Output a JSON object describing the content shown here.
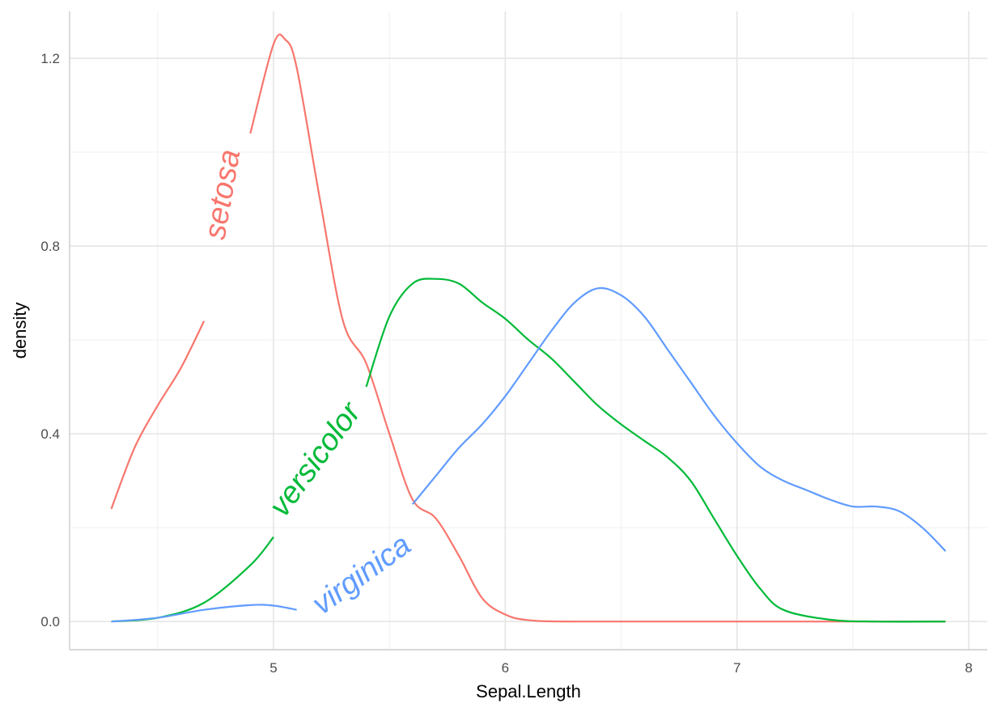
{
  "chart_data": {
    "type": "line",
    "xlabel": "Sepal.Length",
    "ylabel": "density",
    "xlim": [
      4.12,
      8.08
    ],
    "ylim": [
      -0.06,
      1.3
    ],
    "x_ticks": [
      5,
      6,
      7,
      8
    ],
    "y_ticks": [
      0.0,
      0.4,
      0.8,
      1.2
    ],
    "x_tick_labels": [
      "5",
      "6",
      "7",
      "8"
    ],
    "y_tick_labels": [
      "0.0",
      "0.4",
      "0.8",
      "1.2"
    ],
    "grid": true,
    "series": [
      {
        "name": "setosa",
        "color": "#F8766D",
        "points": [
          [
            4.3,
            0.24
          ],
          [
            4.4,
            0.37
          ],
          [
            4.5,
            0.46
          ],
          [
            4.6,
            0.54
          ],
          [
            4.7,
            0.64
          ],
          [
            4.8,
            0.8
          ],
          [
            4.9,
            1.04
          ],
          [
            5.0,
            1.23
          ],
          [
            5.05,
            1.24
          ],
          [
            5.1,
            1.18
          ],
          [
            5.2,
            0.9
          ],
          [
            5.3,
            0.64
          ],
          [
            5.4,
            0.55
          ],
          [
            5.5,
            0.4
          ],
          [
            5.6,
            0.26
          ],
          [
            5.7,
            0.22
          ],
          [
            5.8,
            0.14
          ],
          [
            5.9,
            0.05
          ],
          [
            6.0,
            0.015
          ],
          [
            6.1,
            0.003
          ],
          [
            6.3,
            0.0
          ],
          [
            7.0,
            0.0
          ],
          [
            7.9,
            0.0
          ]
        ],
        "label": {
          "text": "setosa",
          "x": 4.78,
          "y": 0.91,
          "angle": -80,
          "gap_from": 4.78,
          "gap_to": 4.89
        }
      },
      {
        "name": "versicolor",
        "color": "#00BA38",
        "points": [
          [
            4.3,
            0.0
          ],
          [
            4.5,
            0.008
          ],
          [
            4.7,
            0.04
          ],
          [
            4.9,
            0.12
          ],
          [
            5.0,
            0.18
          ],
          [
            5.1,
            0.25
          ],
          [
            5.2,
            0.34
          ],
          [
            5.3,
            0.42
          ],
          [
            5.4,
            0.5
          ],
          [
            5.5,
            0.65
          ],
          [
            5.6,
            0.72
          ],
          [
            5.7,
            0.73
          ],
          [
            5.8,
            0.72
          ],
          [
            5.9,
            0.68
          ],
          [
            6.0,
            0.645
          ],
          [
            6.1,
            0.6
          ],
          [
            6.2,
            0.56
          ],
          [
            6.3,
            0.51
          ],
          [
            6.4,
            0.46
          ],
          [
            6.5,
            0.42
          ],
          [
            6.6,
            0.385
          ],
          [
            6.7,
            0.35
          ],
          [
            6.8,
            0.3
          ],
          [
            6.9,
            0.22
          ],
          [
            7.0,
            0.14
          ],
          [
            7.1,
            0.07
          ],
          [
            7.2,
            0.025
          ],
          [
            7.4,
            0.004
          ],
          [
            7.6,
            0.0
          ],
          [
            7.9,
            0.0
          ]
        ],
        "label": {
          "text": "versicolor",
          "x": 5.18,
          "y": 0.345,
          "angle": -54,
          "gap_from": 5.0,
          "gap_to": 5.39
        }
      },
      {
        "name": "virginica",
        "color": "#619CFF",
        "points": [
          [
            4.3,
            0.0
          ],
          [
            4.5,
            0.008
          ],
          [
            4.7,
            0.025
          ],
          [
            4.9,
            0.035
          ],
          [
            5.0,
            0.034
          ],
          [
            5.1,
            0.025
          ],
          [
            5.2,
            0.04
          ],
          [
            5.3,
            0.07
          ],
          [
            5.4,
            0.12
          ],
          [
            5.5,
            0.18
          ],
          [
            5.6,
            0.25
          ],
          [
            5.7,
            0.31
          ],
          [
            5.8,
            0.37
          ],
          [
            5.9,
            0.42
          ],
          [
            6.0,
            0.48
          ],
          [
            6.1,
            0.55
          ],
          [
            6.2,
            0.62
          ],
          [
            6.3,
            0.68
          ],
          [
            6.4,
            0.71
          ],
          [
            6.5,
            0.695
          ],
          [
            6.6,
            0.65
          ],
          [
            6.7,
            0.58
          ],
          [
            6.8,
            0.51
          ],
          [
            6.9,
            0.44
          ],
          [
            7.0,
            0.38
          ],
          [
            7.1,
            0.33
          ],
          [
            7.2,
            0.3
          ],
          [
            7.3,
            0.28
          ],
          [
            7.4,
            0.26
          ],
          [
            7.5,
            0.245
          ],
          [
            7.6,
            0.245
          ],
          [
            7.7,
            0.235
          ],
          [
            7.8,
            0.2
          ],
          [
            7.9,
            0.15
          ]
        ],
        "label": {
          "text": "virginica",
          "x": 5.38,
          "y": 0.1,
          "angle": -36,
          "gap_from": 5.1,
          "gap_to": 5.6
        }
      }
    ]
  }
}
